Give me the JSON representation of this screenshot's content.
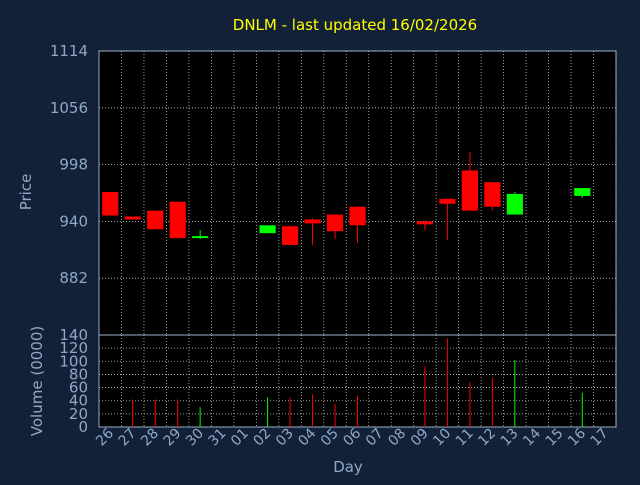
{
  "chart_data": [
    {
      "type": "candlestick",
      "title": "DNLM - last updated 16/02/2026",
      "ylabel": "Price",
      "ylim": [
        824,
        1114
      ],
      "yticks": [
        882,
        940,
        998,
        1056,
        1114
      ],
      "grid": true,
      "x_days": [
        "26",
        "27",
        "28",
        "29",
        "30",
        "31",
        "01",
        "02",
        "03",
        "04",
        "05",
        "06",
        "07",
        "08",
        "09",
        "10",
        "11",
        "12",
        "13",
        "14",
        "15",
        "16",
        "17"
      ],
      "up_color": "#00ff00",
      "down_color": "#ff0000",
      "candles": [
        {
          "day": "26",
          "open": 970,
          "close": 946,
          "high": 970,
          "low": 946
        },
        {
          "day": "27",
          "open": 945,
          "close": 942,
          "high": 945,
          "low": 942
        },
        {
          "day": "28",
          "open": 951,
          "close": 932,
          "high": 951,
          "low": 932
        },
        {
          "day": "29",
          "open": 960,
          "close": 923,
          "high": 960,
          "low": 923
        },
        {
          "day": "30",
          "open": 923,
          "close": 925,
          "high": 931,
          "low": 922
        },
        {
          "day": "02",
          "open": 928,
          "close": 936,
          "high": 936,
          "low": 928
        },
        {
          "day": "03",
          "open": 935,
          "close": 916,
          "high": 936,
          "low": 916
        },
        {
          "day": "04",
          "open": 942,
          "close": 938,
          "high": 943,
          "low": 916
        },
        {
          "day": "05",
          "open": 947,
          "close": 930,
          "high": 947,
          "low": 922
        },
        {
          "day": "06",
          "open": 955,
          "close": 936,
          "high": 955,
          "low": 918
        },
        {
          "day": "09",
          "open": 940,
          "close": 937,
          "high": 941,
          "low": 931
        },
        {
          "day": "10",
          "open": 963,
          "close": 958,
          "high": 963,
          "low": 921
        },
        {
          "day": "11",
          "open": 992,
          "close": 951,
          "high": 1011,
          "low": 951
        },
        {
          "day": "12",
          "open": 980,
          "close": 955,
          "high": 980,
          "low": 951
        },
        {
          "day": "13",
          "open": 947,
          "close": 968,
          "high": 970,
          "low": 947
        },
        {
          "day": "16",
          "open": 966,
          "close": 974,
          "high": 974,
          "low": 964
        }
      ]
    },
    {
      "type": "bar",
      "ylabel": "Volume (0000)",
      "xlabel": "Day",
      "ylim": [
        0,
        140
      ],
      "yticks": [
        0,
        20,
        40,
        60,
        80,
        100,
        120,
        140
      ],
      "grid": true,
      "bars": [
        {
          "day": "27",
          "value": 42,
          "color": "#ff0000"
        },
        {
          "day": "28",
          "value": 42,
          "color": "#ff0000"
        },
        {
          "day": "29",
          "value": 42,
          "color": "#ff0000"
        },
        {
          "day": "30",
          "value": 30,
          "color": "#00ff00"
        },
        {
          "day": "02",
          "value": 45,
          "color": "#00ff00"
        },
        {
          "day": "03",
          "value": 45,
          "color": "#ff0000"
        },
        {
          "day": "04",
          "value": 50,
          "color": "#ff0000"
        },
        {
          "day": "05",
          "value": 35,
          "color": "#ff0000"
        },
        {
          "day": "06",
          "value": 48,
          "color": "#ff0000"
        },
        {
          "day": "09",
          "value": 92,
          "color": "#ff0000"
        },
        {
          "day": "10",
          "value": 135,
          "color": "#ff0000"
        },
        {
          "day": "11",
          "value": 68,
          "color": "#ff0000"
        },
        {
          "day": "12",
          "value": 75,
          "color": "#ff0000"
        },
        {
          "day": "13",
          "value": 102,
          "color": "#00ff00"
        },
        {
          "day": "16",
          "value": 52,
          "color": "#00ff00"
        }
      ]
    }
  ]
}
